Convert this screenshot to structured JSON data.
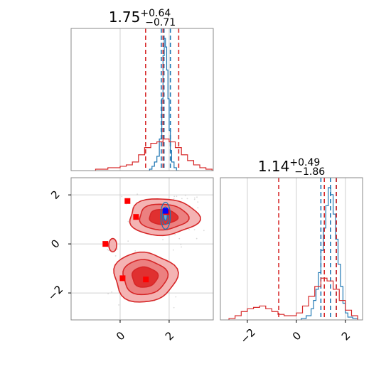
{
  "chart_data": [
    {
      "type": "histogram",
      "panel": "marginal-x",
      "title": {
        "value": "1.75",
        "plus": "+0.64",
        "minus": "−0.71"
      },
      "xlim": [
        -2.0,
        3.8
      ],
      "grid": true,
      "series": [
        {
          "name": "",
          "color": "#1f77b4",
          "edges": [
            1.2,
            1.3,
            1.4,
            1.5,
            1.6,
            1.7,
            1.75,
            1.8,
            1.85,
            1.9,
            1.95,
            2.0,
            2.05,
            2.1,
            2.2,
            2.3,
            2.4
          ],
          "counts": [
            1,
            3,
            6,
            10,
            22,
            50,
            80,
            92,
            86,
            70,
            50,
            28,
            14,
            6,
            2,
            0
          ],
          "quantiles": [
            1.68,
            1.79,
            2.05
          ]
        },
        {
          "name": "",
          "color": "#d62728",
          "edges": [
            -1.0,
            -0.75,
            -0.5,
            -0.25,
            0.0,
            0.25,
            0.5,
            0.75,
            1.0,
            1.25,
            1.5,
            1.75,
            2.0,
            2.25,
            2.5,
            2.75,
            3.0,
            3.25,
            3.5,
            3.75
          ],
          "counts": [
            1,
            1,
            2,
            2,
            3,
            4,
            6,
            11,
            16,
            19,
            20,
            22,
            20,
            16,
            11,
            7,
            4,
            2,
            1
          ],
          "quantiles": [
            1.04,
            1.75,
            2.39
          ]
        }
      ]
    },
    {
      "type": "contour",
      "panel": "joint",
      "xlim": [
        -2.0,
        3.8
      ],
      "ylim": [
        -3.1,
        2.7
      ],
      "xticks": [
        "0",
        "2"
      ],
      "yticks": [
        "−2",
        "0",
        "2"
      ],
      "grid": true,
      "red_modes": [
        {
          "x": 1.75,
          "y": 1.1,
          "sx": 1.05,
          "sy": 0.55
        },
        {
          "x": 1.0,
          "y": -1.35,
          "sx": 0.95,
          "sy": 0.75
        },
        {
          "x": -0.3,
          "y": -0.05,
          "sx": 0.12,
          "sy": 0.2
        }
      ],
      "blue_mode": {
        "x": 1.85,
        "y": 1.15,
        "sx": 0.2,
        "sy": 0.55
      },
      "red_markers": [
        {
          "x": 0.3,
          "y": 1.75
        },
        {
          "x": 0.65,
          "y": 1.1
        },
        {
          "x": 1.9,
          "y": 1.3
        },
        {
          "x": -0.6,
          "y": 0.0
        },
        {
          "x": 0.1,
          "y": -1.4
        },
        {
          "x": 1.05,
          "y": -1.45
        }
      ],
      "blue_marker": {
        "x": 1.85,
        "y": 1.35
      }
    },
    {
      "type": "histogram",
      "panel": "marginal-y",
      "title": {
        "value": "1.14",
        "plus": "+0.49",
        "minus": "−1.86"
      },
      "xlim": [
        -3.1,
        2.7
      ],
      "xticks": [
        "−2",
        "0",
        "2"
      ],
      "grid": true,
      "series": [
        {
          "name": "",
          "color": "#1f77b4",
          "edges": [
            0.2,
            0.4,
            0.6,
            0.7,
            0.8,
            0.9,
            1.0,
            1.1,
            1.2,
            1.3,
            1.4,
            1.5,
            1.6,
            1.7,
            1.8,
            1.9,
            2.0,
            2.1,
            2.3,
            2.5
          ],
          "counts": [
            1,
            3,
            8,
            14,
            22,
            34,
            50,
            66,
            82,
            95,
            90,
            76,
            58,
            40,
            24,
            12,
            5,
            2,
            1
          ],
          "quantiles": [
            1.0,
            1.39,
            1.63
          ]
        },
        {
          "name": "",
          "color": "#d62728",
          "edges": [
            -2.75,
            -2.5,
            -2.25,
            -2.0,
            -1.75,
            -1.5,
            -1.25,
            -1.0,
            -0.75,
            -0.5,
            -0.25,
            0.0,
            0.25,
            0.5,
            0.75,
            1.0,
            1.25,
            1.5,
            1.75,
            2.0,
            2.25,
            2.5
          ],
          "counts": [
            1,
            3,
            6,
            8,
            9,
            10,
            8,
            6,
            4,
            3,
            3,
            5,
            10,
            17,
            24,
            30,
            28,
            22,
            14,
            7,
            3
          ],
          "quantiles": [
            -0.72,
            1.14,
            1.63
          ]
        }
      ]
    }
  ]
}
